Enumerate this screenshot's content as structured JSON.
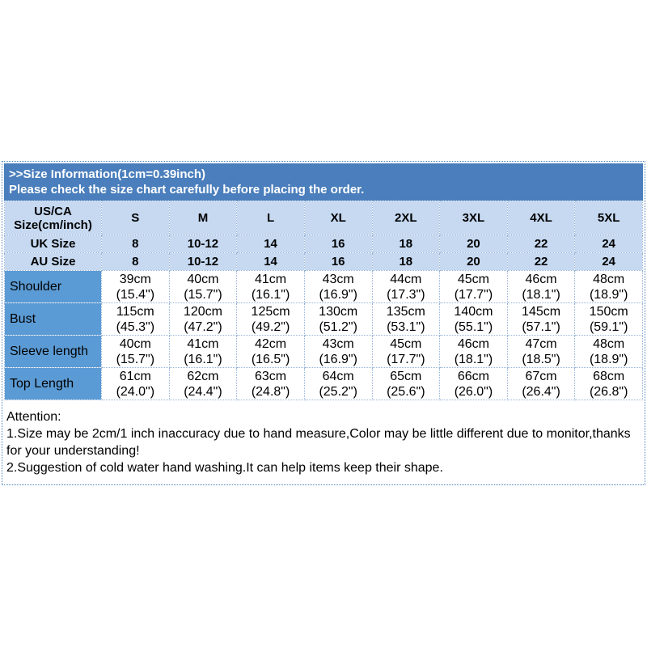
{
  "header": {
    "line1": ">>Size Information(1cm=0.39inch)",
    "line2": "Please check the size chart carefully before placing the order."
  },
  "table": {
    "corner": {
      "line1": "US/CA",
      "line2": "Size(cm/inch)"
    },
    "sizes": [
      "S",
      "M",
      "L",
      "XL",
      "2XL",
      "3XL",
      "4XL",
      "5XL"
    ],
    "uk": {
      "label": "UK Size",
      "values": [
        "8",
        "10-12",
        "14",
        "16",
        "18",
        "20",
        "22",
        "24"
      ]
    },
    "au": {
      "label": "AU Size",
      "values": [
        "8",
        "10-12",
        "14",
        "16",
        "18",
        "20",
        "22",
        "24"
      ]
    },
    "measurements": [
      {
        "label": "Shoulder",
        "cm": [
          "39cm",
          "40cm",
          "41cm",
          "43cm",
          "44cm",
          "45cm",
          "46cm",
          "48cm"
        ],
        "in": [
          "(15.4\")",
          "(15.7\")",
          "(16.1\")",
          "(16.9\")",
          "(17.3\")",
          "(17.7\")",
          "(18.1\")",
          "(18.9\")"
        ]
      },
      {
        "label": "Bust",
        "cm": [
          "115cm",
          "120cm",
          "125cm",
          "130cm",
          "135cm",
          "140cm",
          "145cm",
          "150cm"
        ],
        "in": [
          "(45.3\")",
          "(47.2\")",
          "(49.2\")",
          "(51.2\")",
          "(53.1\")",
          "(55.1\")",
          "(57.1\")",
          "(59.1\")"
        ]
      },
      {
        "label": "Sleeve length",
        "cm": [
          "40cm",
          "41cm",
          "42cm",
          "43cm",
          "45cm",
          "46cm",
          "47cm",
          "48cm"
        ],
        "in": [
          "(15.7\")",
          "(16.1\")",
          "(16.5\")",
          "(16.9\")",
          "(17.7\")",
          "(18.1\")",
          "(18.5\")",
          "(18.9\")"
        ]
      },
      {
        "label": "Top Length",
        "cm": [
          "61cm",
          "62cm",
          "63cm",
          "64cm",
          "65cm",
          "66cm",
          "67cm",
          "68cm"
        ],
        "in": [
          "(24.0\")",
          "(24.4\")",
          "(24.8\")",
          "(25.2\")",
          "(25.6\")",
          "(26.0\")",
          "(26.4\")",
          "(26.8\")"
        ]
      }
    ]
  },
  "attention": {
    "title": "Attention:",
    "line1": "1.Size may be 2cm/1 inch inaccuracy due to hand measure,Color may be little different due to monitor,thanks for your understanding!",
    "line2": "2.Suggestion of cold water hand washing.It can help items keep their shape."
  },
  "colors": {
    "header_bg": "#4a7ebc",
    "light_blue_bg": "#c6d9f1",
    "label_blue_bg": "#5b9bd5",
    "grid_border": "#95b3d7",
    "header_text": "#ffffff",
    "body_text": "#000000"
  }
}
